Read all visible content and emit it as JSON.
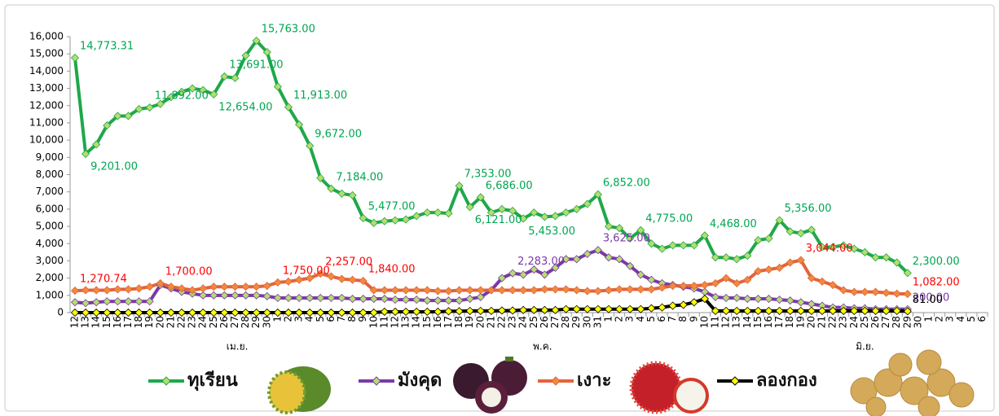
{
  "chart_data": {
    "type": "line",
    "categories": [
      "12",
      "13",
      "14",
      "15",
      "16",
      "17",
      "18",
      "19",
      "20",
      "21",
      "22",
      "23",
      "24",
      "25",
      "26",
      "27",
      "28",
      "29",
      "30",
      "1",
      "2",
      "3",
      "4",
      "5",
      "6",
      "7",
      "8",
      "9",
      "10",
      "11",
      "12",
      "13",
      "14",
      "15",
      "16",
      "17",
      "18",
      "19",
      "20",
      "21",
      "22",
      "23",
      "24",
      "25",
      "26",
      "27",
      "28",
      "29",
      "30",
      "31",
      "1",
      "2",
      "3",
      "4",
      "5",
      "6",
      "7",
      "8",
      "9",
      "10",
      "11",
      "12",
      "13",
      "14",
      "15",
      "16",
      "17",
      "18",
      "19",
      "20",
      "21",
      "22",
      "23",
      "24",
      "25",
      "26",
      "27",
      "28",
      "29",
      "30",
      "1",
      "2",
      "3",
      "4",
      "5",
      "6"
    ],
    "x_group_labels": [
      "เม.ย.",
      "พ.ค.",
      "มิ.ย."
    ],
    "ylim": [
      0,
      16000
    ],
    "yticks": [
      0,
      {
        "value": 1000,
        "label": "1,000"
      },
      {
        "value": 2000,
        "label": "2,000"
      },
      {
        "value": 3000,
        "label": "3,000"
      },
      {
        "value": 4000,
        "label": "4,000"
      },
      {
        "value": 5000,
        "label": "5,000"
      },
      {
        "value": 6000,
        "label": "6,000"
      },
      {
        "value": 7000,
        "label": "7,000"
      },
      {
        "value": 8000,
        "label": "8,000"
      },
      {
        "value": 9000,
        "label": "9,000"
      },
      {
        "value": 10000,
        "label": "10,000"
      },
      {
        "value": 11000,
        "label": "11,000"
      },
      {
        "value": 12000,
        "label": "12,000"
      },
      {
        "value": 13000,
        "label": "13,000"
      },
      {
        "value": 14000,
        "label": "14,000"
      },
      {
        "value": 15000,
        "label": "15,000"
      },
      {
        "value": 16000,
        "label": "16,000"
      }
    ],
    "grid": false,
    "legend": "bottom",
    "series": [
      {
        "name": "ทุเรียน",
        "color": "#1fa84a",
        "marker_color": "#b5dd6f",
        "label_color": "#00a651",
        "values": [
          14773.31,
          9201,
          9750,
          10850,
          11400,
          11400,
          11800,
          11892,
          12100,
          12500,
          12800,
          13000,
          12900,
          12654,
          13691,
          13600,
          14900,
          15763,
          15100,
          13100,
          11913,
          10900,
          9672,
          7800,
          7184,
          6900,
          6800,
          5477,
          5200,
          5300,
          5350,
          5400,
          5600,
          5800,
          5800,
          5750,
          7353,
          6121,
          6686,
          5800,
          6000,
          5900,
          5453,
          5800,
          5550,
          5600,
          5800,
          6000,
          6300,
          6852,
          5000,
          4900,
          4300,
          4775,
          4000,
          3700,
          3900,
          3900,
          3900,
          4468,
          3200,
          3200,
          3100,
          3300,
          4200,
          4300,
          5356,
          4700,
          4600,
          4800,
          3800,
          3800,
          3900,
          3700,
          3500,
          3200,
          3200,
          2900,
          2300,
          null,
          null,
          null,
          null,
          null,
          null,
          null
        ],
        "value_labels": [
          "14,773.31",
          "9,201.00",
          null,
          null,
          null,
          null,
          null,
          "11,892.00",
          null,
          null,
          null,
          null,
          null,
          "12,654.00",
          "13,691.00",
          null,
          null,
          "15,763.00",
          null,
          null,
          "11,913.00",
          null,
          "9,672.00",
          null,
          "7,184.00",
          null,
          null,
          "5,477.00",
          null,
          null,
          null,
          null,
          null,
          null,
          null,
          null,
          "7,353.00",
          "6,121.00",
          "6,686.00",
          null,
          null,
          null,
          "5,453.00",
          null,
          null,
          null,
          null,
          null,
          null,
          "6,852.00",
          null,
          null,
          null,
          "4,775.00",
          null,
          null,
          null,
          null,
          null,
          "4,468.00",
          null,
          null,
          null,
          null,
          null,
          null,
          "5,356.00",
          null,
          null,
          null,
          null,
          null,
          null,
          null,
          null,
          null,
          null,
          null,
          "2,300.00",
          null,
          null,
          null,
          null,
          null,
          null,
          null
        ]
      },
      {
        "name": "มังคุด",
        "color": "#7a3aa6",
        "marker_color": "#b5dd6f",
        "label_color": "#7a3aa6",
        "values": [
          600,
          550,
          600,
          650,
          650,
          650,
          650,
          650,
          1600,
          1400,
          1200,
          1100,
          1000,
          1000,
          1000,
          1000,
          1000,
          1000,
          950,
          850,
          850,
          850,
          850,
          850,
          850,
          850,
          800,
          800,
          800,
          800,
          750,
          750,
          750,
          700,
          700,
          700,
          700,
          800,
          900,
          1300,
          2000,
          2283,
          2200,
          2500,
          2200,
          2600,
          3100,
          3100,
          3400,
          3625,
          3200,
          3100,
          2700,
          2200,
          1900,
          1700,
          1600,
          1500,
          1400,
          1200,
          900,
          850,
          850,
          800,
          800,
          800,
          750,
          700,
          600,
          500,
          400,
          300,
          300,
          250,
          250,
          200,
          200,
          200,
          200,
          null,
          null,
          null,
          null,
          null,
          null,
          null
        ],
        "value_labels": [
          null,
          null,
          null,
          null,
          null,
          null,
          null,
          null,
          null,
          null,
          null,
          null,
          null,
          null,
          null,
          null,
          null,
          null,
          null,
          null,
          null,
          null,
          null,
          null,
          null,
          null,
          null,
          null,
          null,
          null,
          null,
          null,
          null,
          null,
          null,
          null,
          null,
          null,
          null,
          null,
          null,
          "2,283.00",
          null,
          null,
          null,
          null,
          null,
          null,
          null,
          "3,625.00",
          null,
          null,
          null,
          null,
          null,
          null,
          null,
          null,
          null,
          null,
          null,
          null,
          null,
          null,
          null,
          null,
          null,
          null,
          null,
          null,
          null,
          null,
          null,
          null,
          null,
          null,
          null,
          null,
          "200.00",
          null,
          null,
          null,
          null,
          null,
          null,
          null
        ]
      },
      {
        "name": "เงาะ",
        "color": "#e2643c",
        "marker_color": "#f08a3c",
        "label_color": "#ff0000",
        "values": [
          1270.74,
          1300,
          1300,
          1300,
          1350,
          1350,
          1400,
          1500,
          1700,
          1500,
          1400,
          1300,
          1400,
          1500,
          1500,
          1500,
          1500,
          1500,
          1550,
          1750,
          1800,
          1900,
          2000,
          2257,
          2100,
          1950,
          1900,
          1840,
          1300,
          1300,
          1300,
          1300,
          1300,
          1300,
          1250,
          1250,
          1300,
          1300,
          1300,
          1300,
          1300,
          1300,
          1300,
          1300,
          1350,
          1350,
          1350,
          1300,
          1250,
          1250,
          1300,
          1350,
          1350,
          1350,
          1350,
          1450,
          1550,
          1550,
          1550,
          1600,
          1700,
          2000,
          1700,
          1900,
          2400,
          2500,
          2600,
          2900,
          3044,
          2000,
          1800,
          1600,
          1300,
          1200,
          1200,
          1200,
          1150,
          1100,
          1082,
          null,
          null,
          null,
          null,
          null,
          null,
          null
        ],
        "value_labels": [
          "1,270.74",
          null,
          null,
          null,
          null,
          null,
          null,
          null,
          "1,700.00",
          null,
          null,
          null,
          null,
          null,
          null,
          null,
          null,
          null,
          null,
          "1,750.00",
          null,
          null,
          null,
          "2,257.00",
          null,
          null,
          null,
          "1,840.00",
          null,
          null,
          null,
          null,
          null,
          null,
          null,
          null,
          null,
          null,
          null,
          null,
          null,
          null,
          null,
          null,
          null,
          null,
          null,
          null,
          null,
          null,
          null,
          null,
          null,
          null,
          null,
          null,
          null,
          null,
          null,
          null,
          null,
          null,
          null,
          null,
          null,
          null,
          null,
          null,
          "3,044.00",
          null,
          null,
          null,
          null,
          null,
          null,
          null,
          null,
          null,
          "1,082.00",
          null,
          null,
          null,
          null,
          null,
          null,
          null
        ]
      },
      {
        "name": "ลองกอง",
        "color": "#000000",
        "marker_color": "#ffff00",
        "label_color": "#000000",
        "values": [
          0,
          0,
          0,
          0,
          0,
          0,
          0,
          0,
          0,
          0,
          0,
          0,
          0,
          0,
          0,
          0,
          0,
          0,
          0,
          0,
          0,
          0,
          0,
          0,
          0,
          0,
          0,
          0,
          0,
          50,
          50,
          50,
          50,
          50,
          50,
          80,
          80,
          100,
          100,
          100,
          120,
          120,
          150,
          150,
          150,
          150,
          200,
          200,
          200,
          200,
          200,
          200,
          200,
          200,
          250,
          300,
          400,
          450,
          600,
          800,
          100,
          100,
          100,
          100,
          100,
          100,
          100,
          100,
          100,
          100,
          100,
          100,
          100,
          100,
          100,
          100,
          100,
          100,
          81,
          null,
          null,
          null,
          null,
          null,
          null,
          null
        ],
        "value_labels": [
          null,
          null,
          null,
          null,
          null,
          null,
          null,
          null,
          null,
          null,
          null,
          null,
          null,
          null,
          null,
          null,
          null,
          null,
          null,
          null,
          null,
          null,
          null,
          null,
          null,
          null,
          null,
          null,
          null,
          null,
          null,
          null,
          null,
          null,
          null,
          null,
          null,
          null,
          null,
          null,
          null,
          null,
          null,
          null,
          null,
          null,
          null,
          null,
          null,
          null,
          null,
          null,
          null,
          null,
          null,
          null,
          null,
          null,
          null,
          null,
          null,
          null,
          null,
          null,
          null,
          null,
          null,
          null,
          null,
          null,
          null,
          null,
          null,
          null,
          null,
          null,
          null,
          null,
          "81.00",
          null,
          null,
          null,
          null,
          null,
          null,
          null
        ]
      }
    ]
  }
}
